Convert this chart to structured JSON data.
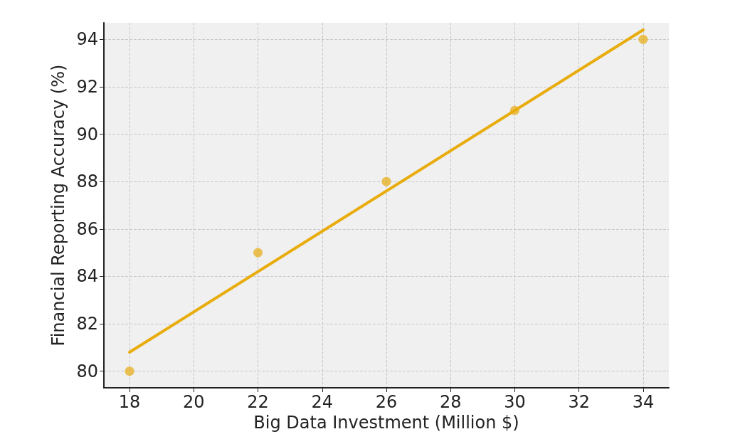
{
  "chart_data": {
    "type": "scatter",
    "xlabel": "Big Data Investment (Million $)",
    "ylabel": "Financial Reporting Accuracy (%)",
    "series": [
      {
        "color": "#e9b32a",
        "x": [
          18,
          22,
          26,
          30,
          34
        ],
        "values": [
          80,
          85,
          88,
          91,
          94
        ],
        "marker": "circle"
      },
      {
        "type": "line",
        "color": "#e8ac0c",
        "x": [
          18,
          34
        ],
        "values": [
          80.8,
          94.4
        ],
        "marker": "none"
      }
    ],
    "xlim": [
      17.2,
      34.8
    ],
    "xticks": [
      18,
      20,
      22,
      24,
      26,
      28,
      30,
      32,
      34
    ],
    "ylim": [
      79.3,
      94.7
    ],
    "yticks": [
      80,
      82,
      84,
      86,
      88,
      90,
      92,
      94
    ],
    "grid": true
  }
}
